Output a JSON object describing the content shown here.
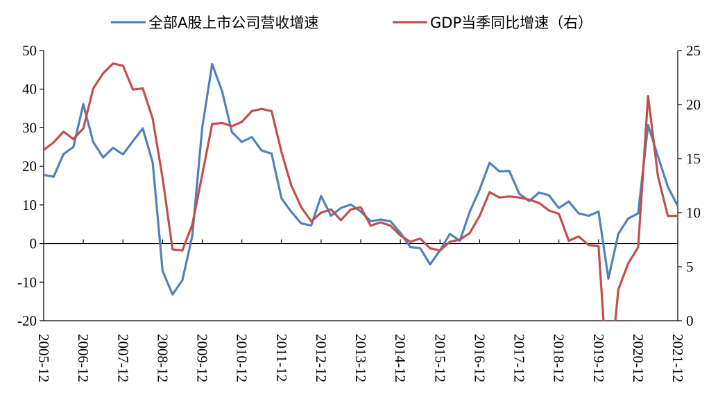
{
  "chart_data": {
    "type": "line",
    "grid": false,
    "legend_position": "top",
    "x_tick_labels": [
      "2005-12",
      "2006-12",
      "2007-12",
      "2008-12",
      "2009-12",
      "2010-12",
      "2011-12",
      "2012-12",
      "2013-12",
      "2014-12",
      "2015-12",
      "2016-12",
      "2017-12",
      "2018-12",
      "2019-12",
      "2020-12",
      "2021-12"
    ],
    "y_left": {
      "lim": [
        -20,
        50
      ],
      "ticks": [
        -20,
        -10,
        0,
        10,
        20,
        30,
        40,
        50
      ]
    },
    "y_right": {
      "lim": [
        0,
        25
      ],
      "ticks": [
        0,
        5,
        10,
        15,
        20,
        25
      ]
    },
    "x_quarter_count": 65,
    "series": [
      {
        "name": "全部A股上市公司营收增速",
        "axis": "left",
        "color": "#4f81bd",
        "values": [
          17.8,
          17.3,
          23.2,
          25,
          36.1,
          26.3,
          22.3,
          24.8,
          23.1,
          26.5,
          29.8,
          21,
          -7.1,
          -13.2,
          -9.5,
          2,
          30,
          46.5,
          39.5,
          28.9,
          26.3,
          27.6,
          24.1,
          23.3,
          11.7,
          8.2,
          5.2,
          4.7,
          12.3,
          7.2,
          9.2,
          10.1,
          8.3,
          5.8,
          6.2,
          5.8,
          2.8,
          -0.9,
          -1.2,
          -5.4,
          -1.8,
          2.5,
          0.7,
          8.2,
          14,
          20.9,
          18.7,
          18.8,
          12.9,
          11,
          13.2,
          12.5,
          9.2,
          10.9,
          7.8,
          7.2,
          8.3,
          -9.1,
          2.5,
          6.5,
          7.8,
          30.7,
          22.6,
          14.7,
          9.7
        ]
      },
      {
        "name": "GDP当季同比增速（右）",
        "axis": "right",
        "color": "#c0504d",
        "values": [
          15.8,
          16.5,
          17.5,
          16.8,
          17.8,
          21.5,
          22.9,
          23.8,
          23.6,
          21.4,
          21.5,
          18.7,
          13.2,
          6.6,
          6.5,
          8.9,
          13.5,
          18.2,
          18.3,
          18.0,
          18.4,
          19.4,
          19.6,
          19.4,
          15.6,
          12.5,
          10.5,
          9.2,
          10,
          10.3,
          9.3,
          10.3,
          10.5,
          8.8,
          9.1,
          8.8,
          7.9,
          7.3,
          7.6,
          6.7,
          6.5,
          7.3,
          7.5,
          8.1,
          9.7,
          11.9,
          11.4,
          11.5,
          11.4,
          11.2,
          10.9,
          10.2,
          9.9,
          7.4,
          7.8,
          7.0,
          6.9,
          -6.8,
          2.9,
          5.3,
          6.8,
          20.8,
          13.4,
          9.7,
          9.7
        ]
      }
    ]
  }
}
